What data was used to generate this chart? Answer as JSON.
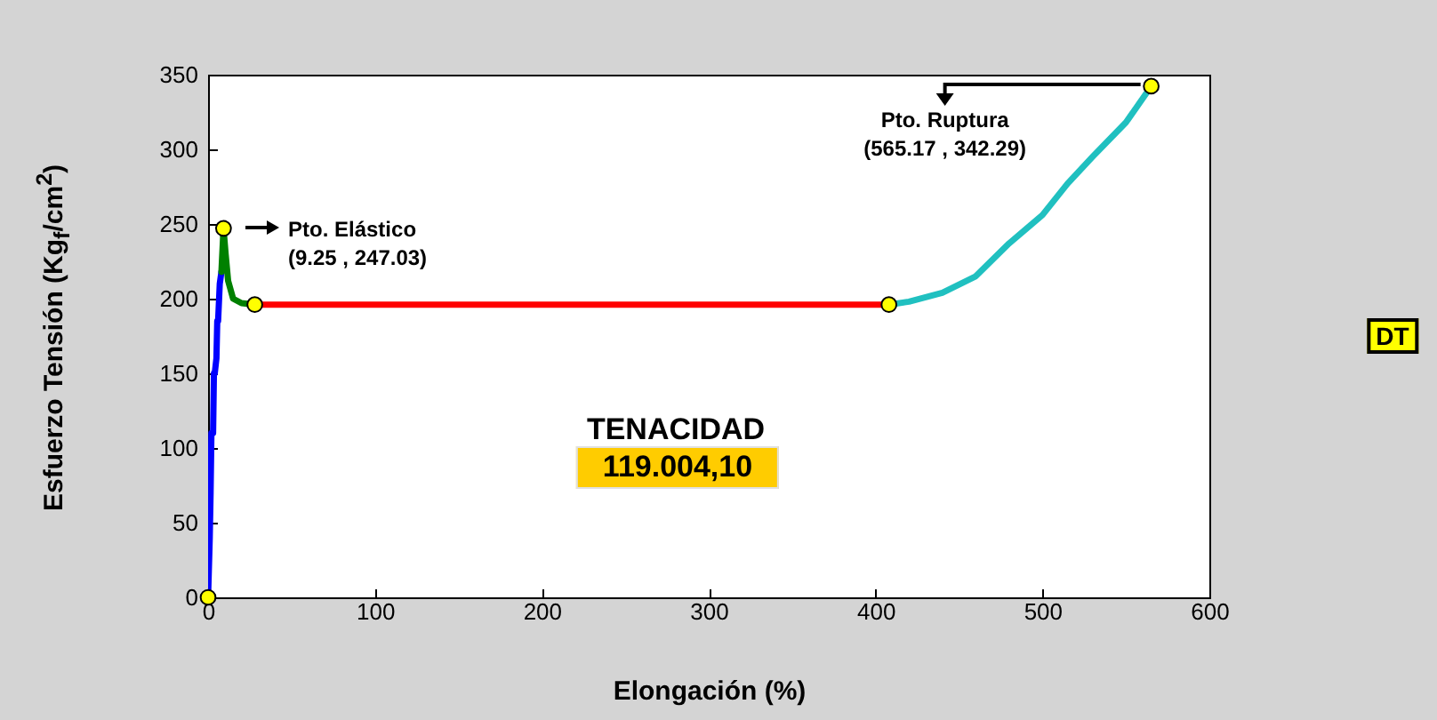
{
  "chart_data": {
    "type": "line",
    "xlabel": "Elongación (%)",
    "ylabel": "Esfuerzo Tensión (Kg$_{f}$/cm$^{2}$)",
    "xlim": [
      0,
      600
    ],
    "ylim": [
      0,
      350
    ],
    "xticks": [
      0,
      100,
      200,
      300,
      400,
      500,
      600
    ],
    "yticks": [
      0,
      50,
      100,
      150,
      200,
      250,
      300,
      350
    ],
    "grid": false,
    "line_style": "solid",
    "series": [
      {
        "color": "#0000ff",
        "x": [
          0,
          1,
          1.5,
          2,
          3,
          3.5,
          4,
          5,
          5.5,
          6,
          7,
          8
        ],
        "values": [
          0,
          40,
          70,
          110,
          110,
          150,
          150,
          160,
          185,
          185,
          210,
          218
        ]
      },
      {
        "color": "#008000",
        "x": [
          8,
          9.25,
          10.5,
          12,
          15,
          20,
          28
        ],
        "values": [
          218,
          247.03,
          230,
          212,
          200,
          197,
          196
        ]
      },
      {
        "color": "#ff0000",
        "x": [
          28,
          408
        ],
        "values": [
          196,
          196
        ]
      },
      {
        "color": "#20c0c0",
        "x": [
          408,
          420,
          440,
          460,
          480,
          500,
          515,
          530,
          550,
          565.17
        ],
        "values": [
          196,
          198,
          204,
          215,
          237,
          256,
          277,
          295,
          318,
          342.29
        ]
      },
      {
        "type": "scatter",
        "color": "#ffff00",
        "marker": "circle",
        "x": [
          0,
          9.25,
          28,
          408,
          565.17
        ],
        "values": [
          0,
          247.03,
          196,
          196,
          342.29
        ]
      }
    ],
    "annotations": [
      "Pto. Elástico\n(9.25 , 247.03)",
      {
        "text": "Pto. Ruptura\n(565.17 , 342.29)",
        "x": 565.17,
        "y": 342.29
      },
      "TENACIDAD",
      "119.004,10",
      "DT"
    ]
  }
}
